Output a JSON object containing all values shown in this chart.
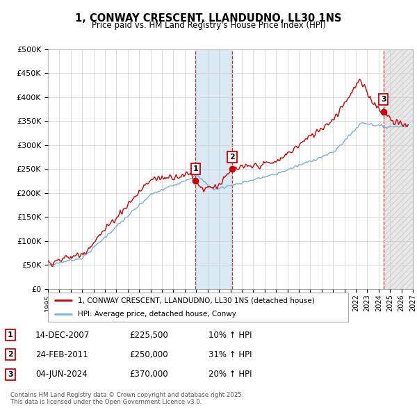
{
  "title": "1, CONWAY CRESCENT, LLANDUDNO, LL30 1NS",
  "subtitle": "Price paid vs. HM Land Registry's House Price Index (HPI)",
  "ylim": [
    0,
    500000
  ],
  "yticks": [
    0,
    50000,
    100000,
    150000,
    200000,
    250000,
    300000,
    350000,
    400000,
    450000,
    500000
  ],
  "ytick_labels": [
    "£0",
    "£50K",
    "£100K",
    "£150K",
    "£200K",
    "£250K",
    "£300K",
    "£350K",
    "£400K",
    "£450K",
    "£500K"
  ],
  "xlim_start": 1995.0,
  "xlim_end": 2027.0,
  "xticks": [
    1995,
    1996,
    1997,
    1998,
    1999,
    2000,
    2001,
    2002,
    2003,
    2004,
    2005,
    2006,
    2007,
    2008,
    2009,
    2010,
    2011,
    2012,
    2013,
    2014,
    2015,
    2016,
    2017,
    2018,
    2019,
    2020,
    2021,
    2022,
    2023,
    2024,
    2025,
    2026,
    2027
  ],
  "sale1_date": 2007.95,
  "sale1_label": "1",
  "sale1_price": 225500,
  "sale1_text": "14-DEC-2007",
  "sale1_hpi_pct": "10% ↑ HPI",
  "sale2_date": 2011.15,
  "sale2_label": "2",
  "sale2_price": 250000,
  "sale2_text": "24-FEB-2011",
  "sale2_hpi_pct": "31% ↑ HPI",
  "sale3_date": 2024.43,
  "sale3_label": "3",
  "sale3_price": 370000,
  "sale3_text": "04-JUN-2024",
  "sale3_hpi_pct": "20% ↑ HPI",
  "line_color_property": "#cc0000",
  "line_color_hpi": "#7bafd4",
  "legend_label_property": "1, CONWAY CRESCENT, LLANDUDNO, LL30 1NS (detached house)",
  "legend_label_hpi": "HPI: Average price, detached house, Conwy",
  "footer_text": "Contains HM Land Registry data © Crown copyright and database right 2025.\nThis data is licensed under the Open Government Licence v3.0.",
  "bg_color": "#ffffff",
  "grid_color": "#cccccc",
  "shade_blue": "#daeaf5",
  "shade_hatch": "#e8e8e8"
}
